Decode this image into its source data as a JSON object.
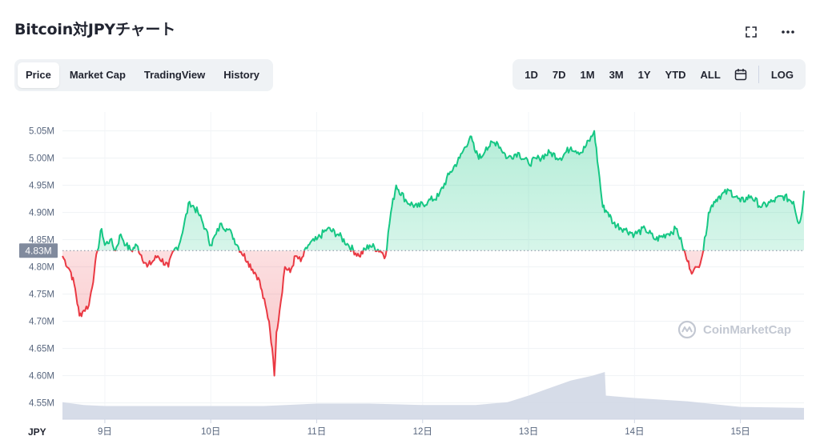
{
  "header": {
    "title": "Bitcoin対JPYチャート"
  },
  "tabs": [
    {
      "label": "Price",
      "active": true
    },
    {
      "label": "Market Cap",
      "active": false
    },
    {
      "label": "TradingView",
      "active": false
    },
    {
      "label": "History",
      "active": false
    }
  ],
  "ranges": {
    "items": [
      "1D",
      "7D",
      "1M",
      "3M",
      "1Y",
      "YTD",
      "ALL"
    ],
    "log_label": "LOG"
  },
  "icons": {
    "fullscreen": "fullscreen-icon",
    "more": "more-horizontal-icon",
    "calendar": "calendar-icon",
    "brand": "coinmarketcap-logo-icon"
  },
  "watermark": "CoinMarketCap",
  "colors": {
    "up": "#16c784",
    "down": "#ea3943",
    "volume": "#cfd6e4",
    "badge": "#808a9d"
  },
  "chart_data": {
    "type": "line",
    "currency_label": "JPY",
    "reference_value": 4830000,
    "reference_label": "4.83M",
    "ylim": [
      4520000,
      5070000
    ],
    "yticks": [
      {
        "value": 4550000,
        "label": "4.55M"
      },
      {
        "value": 4600000,
        "label": "4.60M"
      },
      {
        "value": 4650000,
        "label": "4.65M"
      },
      {
        "value": 4700000,
        "label": "4.70M"
      },
      {
        "value": 4750000,
        "label": "4.75M"
      },
      {
        "value": 4800000,
        "label": "4.80M"
      },
      {
        "value": 4850000,
        "label": "4.85M"
      },
      {
        "value": 4900000,
        "label": "4.90M"
      },
      {
        "value": 4950000,
        "label": "4.95M"
      },
      {
        "value": 5000000,
        "label": "5.00M"
      },
      {
        "value": 5050000,
        "label": "5.05M"
      }
    ],
    "xlim": [
      8.6,
      15.6
    ],
    "xticks": [
      {
        "value": 9,
        "label": "9日"
      },
      {
        "value": 10,
        "label": "10日"
      },
      {
        "value": 11,
        "label": "11日"
      },
      {
        "value": 12,
        "label": "12日"
      },
      {
        "value": 13,
        "label": "13日"
      },
      {
        "value": 14,
        "label": "14日"
      },
      {
        "value": 15,
        "label": "15日"
      }
    ],
    "series": [
      {
        "x": [
          8.6,
          8.68,
          8.72,
          8.76,
          8.8,
          8.85,
          8.9,
          8.93,
          8.97,
          9.0,
          9.05,
          9.1,
          9.15,
          9.2,
          9.25,
          9.3,
          9.4,
          9.5,
          9.6,
          9.65,
          9.7,
          9.8,
          9.88,
          9.95,
          10.0,
          10.05,
          10.1,
          10.15,
          10.2,
          10.25,
          10.35,
          10.45,
          10.55,
          10.58,
          10.6,
          10.62,
          10.65,
          10.7,
          10.75,
          10.8,
          10.85,
          10.92,
          11.0,
          11.1,
          11.2,
          11.3,
          11.4,
          11.5,
          11.6,
          11.65,
          11.7,
          11.75,
          11.85,
          11.95,
          12.05,
          12.15,
          12.25,
          12.35,
          12.45,
          12.5,
          12.55,
          12.6,
          12.7,
          12.8,
          12.9,
          13.0,
          13.1,
          13.2,
          13.3,
          13.4,
          13.5,
          13.6,
          13.62,
          13.66,
          13.7,
          13.75,
          13.8,
          13.9,
          14.0,
          14.1,
          14.2,
          14.3,
          14.4,
          14.45,
          14.5,
          14.55,
          14.6,
          14.65,
          14.7,
          14.75,
          14.8,
          14.9,
          15.0,
          15.1,
          15.2,
          15.3,
          15.4,
          15.5,
          15.55,
          15.58,
          15.6
        ],
        "y": [
          4820000,
          4790000,
          4760000,
          4710000,
          4720000,
          4730000,
          4790000,
          4830000,
          4870000,
          4840000,
          4850000,
          4830000,
          4860000,
          4840000,
          4830000,
          4840000,
          4800000,
          4820000,
          4800000,
          4830000,
          4840000,
          4920000,
          4900000,
          4870000,
          4840000,
          4860000,
          4880000,
          4870000,
          4860000,
          4840000,
          4810000,
          4780000,
          4700000,
          4650000,
          4600000,
          4680000,
          4720000,
          4800000,
          4790000,
          4820000,
          4810000,
          4840000,
          4850000,
          4870000,
          4860000,
          4840000,
          4820000,
          4840000,
          4830000,
          4820000,
          4900000,
          4950000,
          4920000,
          4910000,
          4920000,
          4930000,
          4970000,
          5000000,
          5040000,
          5010000,
          5000000,
          5020000,
          5030000,
          5000000,
          5010000,
          4990000,
          5000000,
          5010000,
          5000000,
          5020000,
          5010000,
          5040000,
          5050000,
          4980000,
          4910000,
          4900000,
          4880000,
          4870000,
          4860000,
          4870000,
          4850000,
          4860000,
          4870000,
          4840000,
          4810000,
          4790000,
          4800000,
          4830000,
          4900000,
          4920000,
          4930000,
          4940000,
          4920000,
          4930000,
          4910000,
          4920000,
          4930000,
          4920000,
          4880000,
          4900000,
          4940000
        ]
      }
    ],
    "volume": {
      "x": [
        8.6,
        8.8,
        9.0,
        9.5,
        10.0,
        10.5,
        11.0,
        11.5,
        12.0,
        12.5,
        12.8,
        13.0,
        13.2,
        13.4,
        13.6,
        13.72,
        13.73,
        14.0,
        14.5,
        15.0,
        15.6
      ],
      "relative": [
        0.36,
        0.3,
        0.28,
        0.28,
        0.28,
        0.28,
        0.33,
        0.33,
        0.3,
        0.3,
        0.36,
        0.5,
        0.66,
        0.82,
        0.92,
        1.0,
        0.5,
        0.45,
        0.38,
        0.26,
        0.24
      ]
    }
  }
}
